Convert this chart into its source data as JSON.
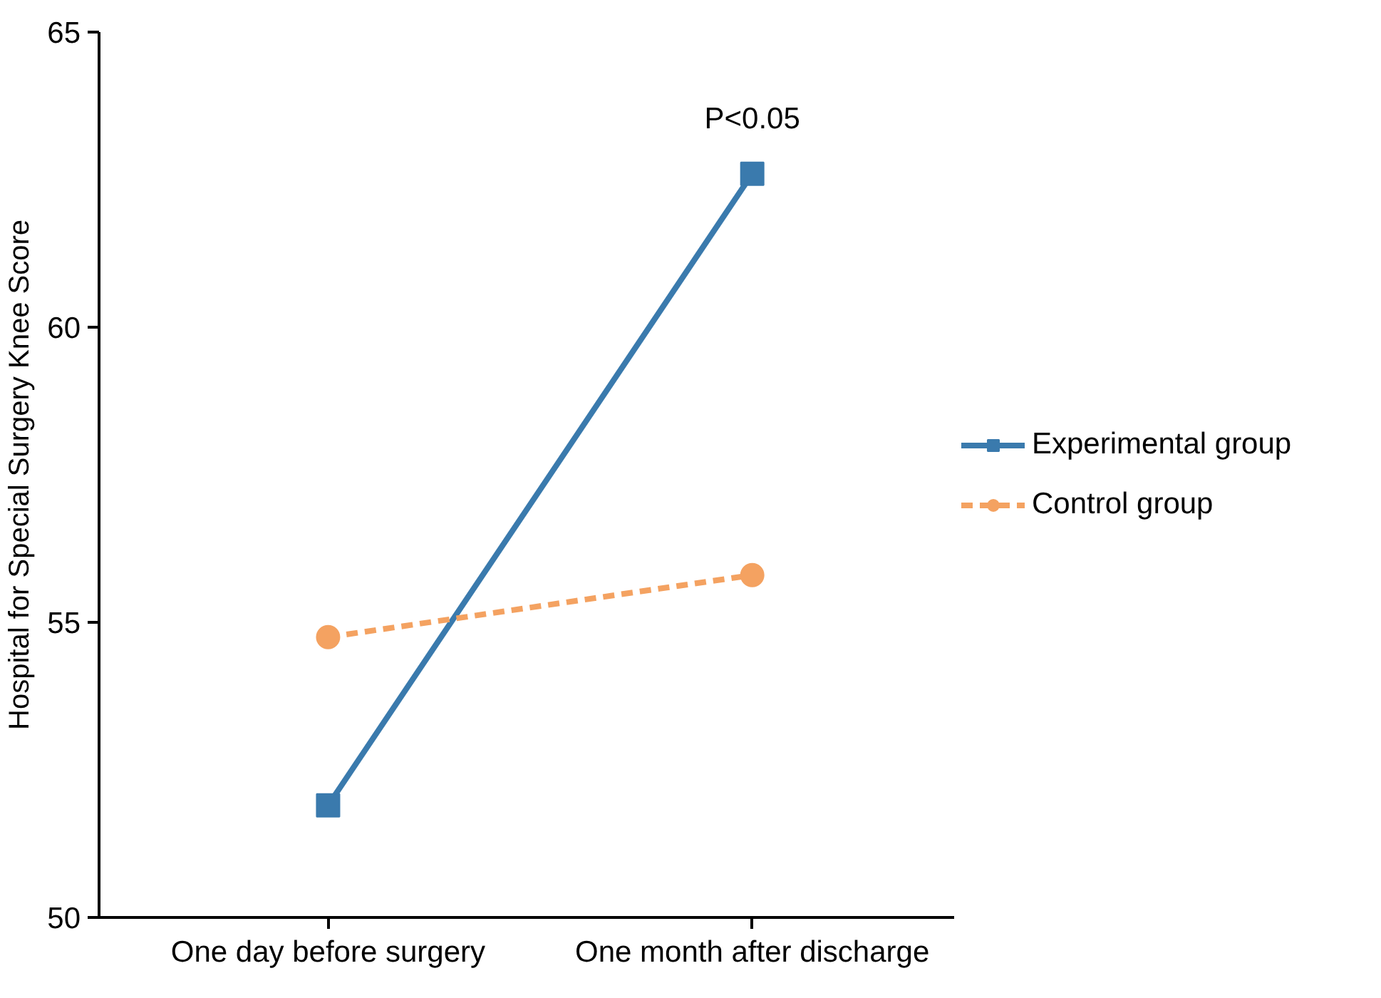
{
  "chart_data": {
    "type": "line",
    "ylabel": "Hospital for Special Surgery Knee Score",
    "categories": [
      "One day before surgery",
      "One month after discharge"
    ],
    "series": [
      {
        "name": "Experimental group",
        "color": "#3a7aad",
        "values": [
          51.9,
          62.6
        ],
        "marker": "square",
        "line_style": "solid"
      },
      {
        "name": "Control group",
        "color": "#f4a261",
        "values": [
          54.75,
          55.8
        ],
        "marker": "circle",
        "line_style": "dashed"
      }
    ],
    "ylim": [
      50,
      65
    ],
    "yticks": [
      50,
      55,
      60,
      65
    ],
    "grid": false,
    "legend": "right",
    "annotations": [
      "P<0.05"
    ]
  }
}
